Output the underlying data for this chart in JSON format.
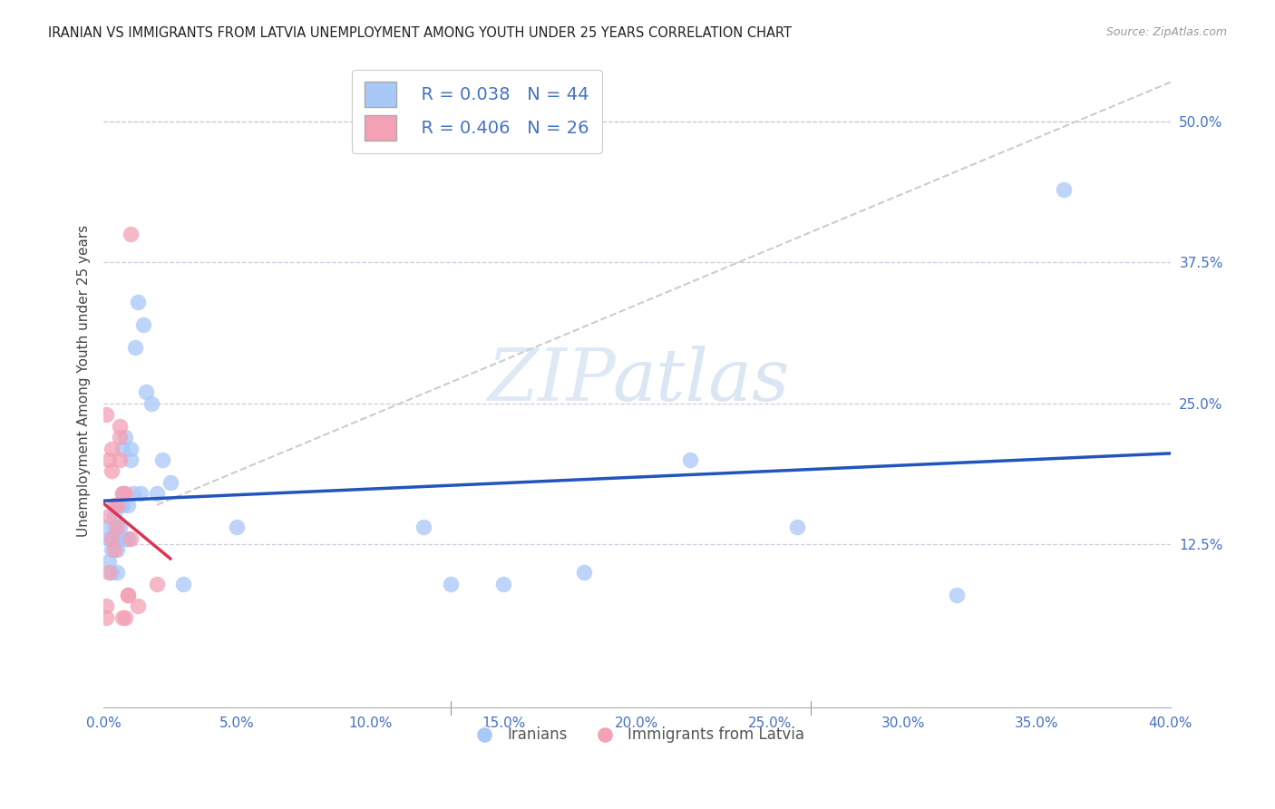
{
  "title": "IRANIAN VS IMMIGRANTS FROM LATVIA UNEMPLOYMENT AMONG YOUTH UNDER 25 YEARS CORRELATION CHART",
  "source": "Source: ZipAtlas.com",
  "ylabel": "Unemployment Among Youth under 25 years",
  "ylabel_right_ticks": [
    "50.0%",
    "37.5%",
    "25.0%",
    "12.5%"
  ],
  "ylabel_right_vals": [
    0.5,
    0.375,
    0.25,
    0.125
  ],
  "legend_blue_r": "R = 0.038",
  "legend_blue_n": "N = 44",
  "legend_pink_r": "R = 0.406",
  "legend_pink_n": "N = 26",
  "legend_label_blue": "Iranians",
  "legend_label_pink": "Immigrants from Latvia",
  "blue_color": "#A8C8F8",
  "pink_color": "#F4A0B5",
  "blue_line_color": "#2255BB",
  "pink_line_color": "#DD3355",
  "background_color": "#FFFFFF",
  "watermark_zip": "ZIP",
  "watermark_atlas": "atlas",
  "xlim": [
    0.0,
    0.4
  ],
  "ylim": [
    -0.02,
    0.56
  ],
  "x_ticks": [
    0.0,
    0.05,
    0.1,
    0.15,
    0.2,
    0.25,
    0.3,
    0.35,
    0.4
  ],
  "x_tick_labels": [
    "0.0%",
    "5.0%",
    "10.0%",
    "15.0%",
    "20.0%",
    "25.0%",
    "30.0%",
    "35.0%",
    "40.0%"
  ],
  "iranians_x": [
    0.001,
    0.002,
    0.002,
    0.003,
    0.003,
    0.003,
    0.004,
    0.004,
    0.005,
    0.005,
    0.005,
    0.005,
    0.006,
    0.006,
    0.006,
    0.007,
    0.007,
    0.007,
    0.008,
    0.008,
    0.009,
    0.009,
    0.01,
    0.01,
    0.011,
    0.012,
    0.013,
    0.014,
    0.015,
    0.016,
    0.018,
    0.02,
    0.022,
    0.025,
    0.03,
    0.05,
    0.12,
    0.13,
    0.15,
    0.18,
    0.22,
    0.26,
    0.32,
    0.36
  ],
  "iranians_y": [
    0.14,
    0.13,
    0.11,
    0.1,
    0.12,
    0.13,
    0.15,
    0.14,
    0.1,
    0.12,
    0.13,
    0.16,
    0.16,
    0.14,
    0.13,
    0.17,
    0.16,
    0.21,
    0.22,
    0.13,
    0.16,
    0.13,
    0.21,
    0.2,
    0.17,
    0.3,
    0.34,
    0.17,
    0.32,
    0.26,
    0.25,
    0.17,
    0.2,
    0.18,
    0.09,
    0.14,
    0.14,
    0.09,
    0.09,
    0.1,
    0.2,
    0.14,
    0.08,
    0.44
  ],
  "latvia_x": [
    0.001,
    0.001,
    0.001,
    0.002,
    0.002,
    0.002,
    0.003,
    0.003,
    0.003,
    0.004,
    0.004,
    0.005,
    0.005,
    0.006,
    0.006,
    0.006,
    0.007,
    0.007,
    0.008,
    0.008,
    0.009,
    0.009,
    0.01,
    0.01,
    0.013,
    0.02
  ],
  "latvia_y": [
    0.06,
    0.07,
    0.24,
    0.1,
    0.15,
    0.2,
    0.13,
    0.19,
    0.21,
    0.12,
    0.16,
    0.14,
    0.16,
    0.2,
    0.22,
    0.23,
    0.17,
    0.06,
    0.06,
    0.17,
    0.08,
    0.08,
    0.13,
    0.4,
    0.07,
    0.09
  ],
  "dash_line_x": [
    0.02,
    0.4
  ],
  "dash_line_y": [
    0.16,
    0.535
  ]
}
